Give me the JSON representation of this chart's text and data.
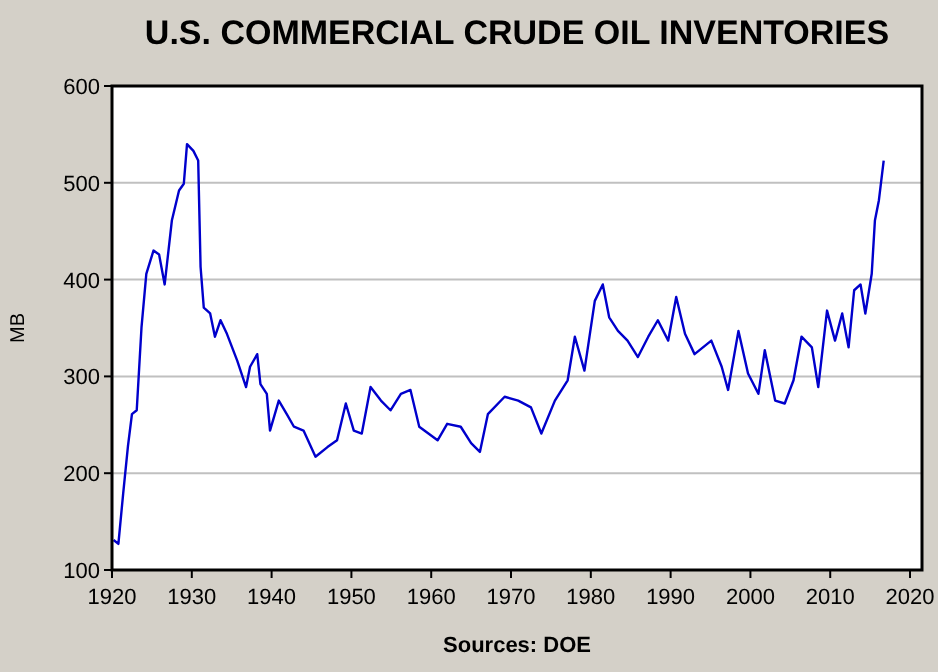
{
  "chart_data": {
    "type": "line",
    "title": "U.S. COMMERCIAL CRUDE OIL INVENTORIES",
    "ylabel": "MB",
    "annotations": [
      "Sources: DOE"
    ],
    "x": [
      1920.2,
      1920.8,
      1921.4,
      1922.0,
      1922.5,
      1923.1,
      1923.7,
      1924.3,
      1925.2,
      1925.9,
      1926.6,
      1927.5,
      1928.4,
      1929.0,
      1929.4,
      1930.2,
      1930.8,
      1931.1,
      1931.5,
      1932.3,
      1932.9,
      1933.6,
      1934.4,
      1935.7,
      1936.8,
      1937.3,
      1938.2,
      1938.6,
      1939.4,
      1939.8,
      1940.9,
      1941.9,
      1942.8,
      1944.0,
      1945.5,
      1947.0,
      1948.2,
      1949.3,
      1950.3,
      1951.3,
      1952.4,
      1953.7,
      1954.9,
      1956.2,
      1957.4,
      1958.5,
      1960.8,
      1962.0,
      1963.7,
      1965.0,
      1966.1,
      1967.1,
      1969.2,
      1970.9,
      1972.5,
      1973.8,
      1975.5,
      1977.1,
      1978.0,
      1979.2,
      1980.5,
      1981.5,
      1982.3,
      1983.4,
      1984.6,
      1985.9,
      1987.2,
      1988.4,
      1989.7,
      1990.7,
      1991.8,
      1993.0,
      1995.1,
      1996.4,
      1997.2,
      1998.5,
      1999.7,
      2001.0,
      2001.8,
      2003.1,
      2004.3,
      2005.4,
      2006.4,
      2007.7,
      2008.5,
      2009.6,
      2010.6,
      2011.5,
      2012.3,
      2013.0,
      2013.8,
      2014.4,
      2015.2,
      2015.6,
      2016.1,
      2016.7
    ],
    "series": [
      {
        "color": "#0000cc",
        "values": [
          131,
          127,
          179,
          228,
          261,
          265,
          351,
          406,
          430,
          426,
          395,
          461,
          492,
          499,
          540,
          533,
          523,
          413,
          371,
          365,
          341,
          358,
          344,
          316,
          289,
          310,
          323,
          292,
          282,
          244,
          275,
          261,
          248,
          244,
          217,
          227,
          234,
          272,
          244,
          241,
          289,
          275,
          265,
          282,
          286,
          248,
          234,
          251,
          248,
          231,
          222,
          261,
          279,
          275,
          268,
          241,
          275,
          296,
          341,
          306,
          378,
          395,
          361,
          347,
          337,
          320,
          341,
          358,
          337,
          382,
          344,
          323,
          337,
          310,
          286,
          347,
          303,
          282,
          327,
          275,
          272,
          296,
          341,
          330,
          289,
          368,
          337,
          365,
          330,
          389,
          395,
          365,
          406,
          461,
          482,
          523
        ]
      }
    ],
    "xlim": [
      1920,
      2021.5
    ],
    "xticks": [
      1920,
      1930,
      1940,
      1950,
      1960,
      1970,
      1980,
      1990,
      2000,
      2010,
      2020
    ],
    "ylim": [
      100,
      600
    ],
    "yticks": [
      100,
      200,
      300,
      400,
      500,
      600
    ],
    "grid": "y",
    "marker": "none",
    "line_style": "solid"
  }
}
